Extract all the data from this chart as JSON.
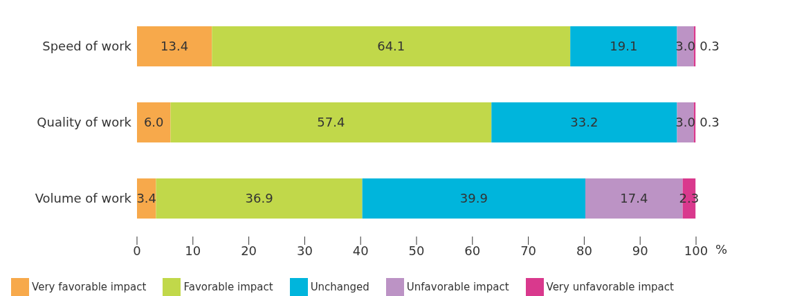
{
  "chart_data": {
    "type": "bar",
    "orientation": "horizontal",
    "stacked": true,
    "categories": [
      "Speed of work",
      "Quality of work",
      "Volume of work"
    ],
    "series": [
      {
        "name": "Very favorable impact",
        "color": "#f7a94b",
        "values": [
          13.4,
          6.0,
          3.4
        ],
        "value_labels": [
          "13.4",
          "6.0",
          "3.4"
        ]
      },
      {
        "name": "Favorable impact",
        "color": "#c1d84a",
        "values": [
          64.1,
          57.4,
          36.9
        ]
      },
      {
        "name": "Unchanged",
        "color": "#00b5dc",
        "values": [
          19.1,
          33.2,
          39.9
        ]
      },
      {
        "name": "Unfavorable impact",
        "color": "#bc93c5",
        "values": [
          3.0,
          3.0,
          17.4
        ],
        "value_labels": [
          "3.0",
          "3.0",
          "17.4"
        ]
      },
      {
        "name": "Very unfavorable impact",
        "color": "#d9398d",
        "values": [
          0.3,
          0.3,
          2.3
        ]
      }
    ],
    "xlim": [
      0,
      100
    ],
    "xticks": [
      0,
      10,
      20,
      30,
      40,
      50,
      60,
      70,
      80,
      90,
      100
    ],
    "xlabel": "%",
    "data_labels": true,
    "grid": false,
    "legend": "bottom"
  }
}
